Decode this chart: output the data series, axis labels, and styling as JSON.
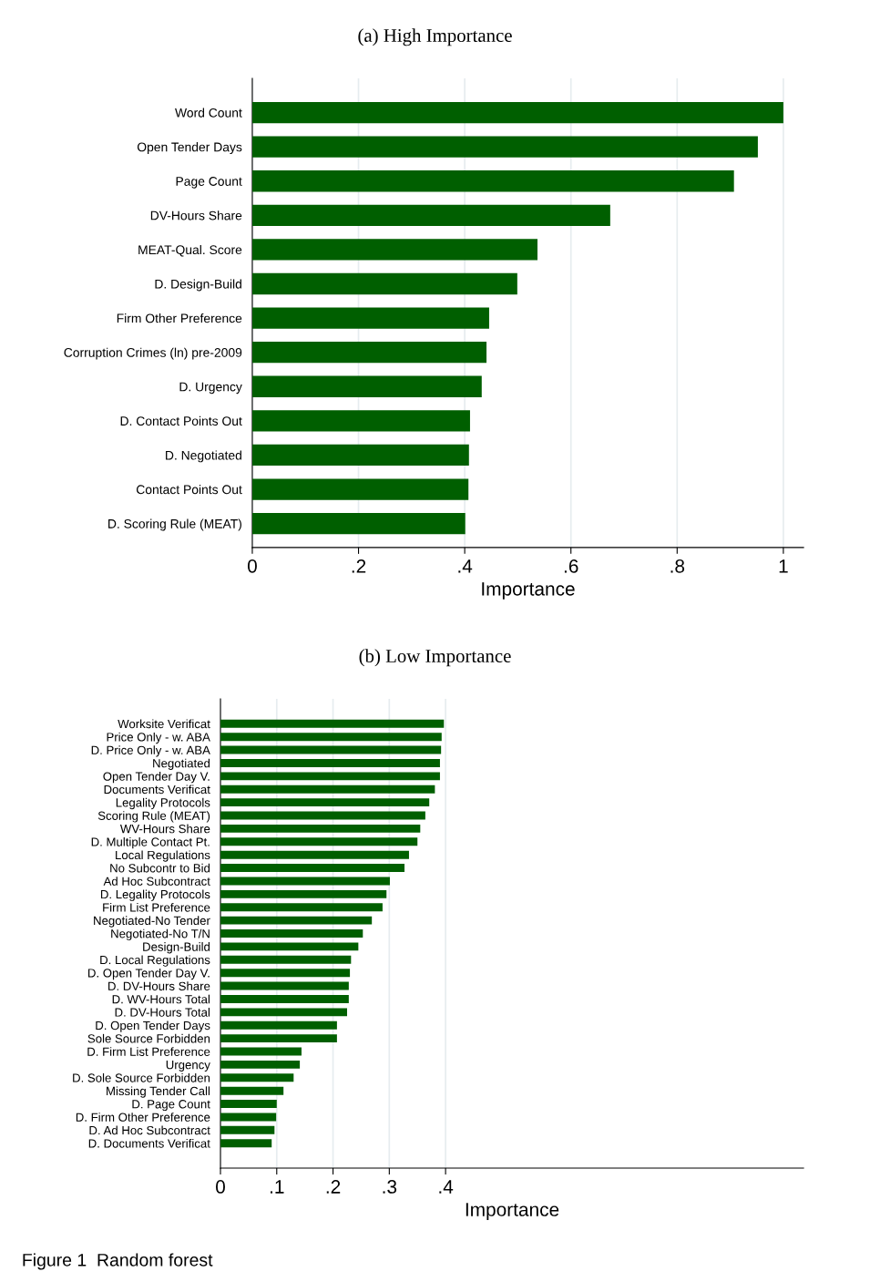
{
  "chart_data": [
    {
      "type": "bar",
      "orientation": "horizontal",
      "title": "(a) High Importance",
      "xlabel": "Importance",
      "categories": [
        "Word Count",
        "Open Tender Days",
        "Page Count",
        "DV-Hours Share",
        "MEAT-Qual. Score",
        "D. Design-Build",
        "Firm Other Preference",
        "Corruption Crimes (ln) pre-2009",
        "D. Urgency",
        "D. Contact Points Out",
        "D. Negotiated",
        "Contact Points Out",
        "D. Scoring Rule (MEAT)"
      ],
      "values": [
        1.0,
        0.952,
        0.907,
        0.674,
        0.537,
        0.499,
        0.446,
        0.441,
        0.432,
        0.41,
        0.408,
        0.407,
        0.401
      ],
      "color": "#005f00",
      "xlim": [
        0,
        1.038
      ],
      "xticks": [
        0,
        {
          "value": 0.2,
          "label": ".2"
        },
        {
          "value": 0.4,
          "label": ".4"
        },
        {
          "value": 0.6,
          "label": ".6"
        },
        {
          "value": 0.8,
          "label": ".8"
        },
        1
      ],
      "grid": "x"
    },
    {
      "type": "bar",
      "orientation": "horizontal",
      "title": "(b) Low Importance",
      "xlabel": "Importance",
      "categories": [
        "Worksite Verificat",
        "Price Only - w. ABA",
        "D. Price Only - w. ABA",
        "Negotiated",
        "Open Tender Day V.",
        "Documents Verificat",
        "Legality Protocols",
        "Scoring Rule (MEAT)",
        "WV-Hours Share",
        "D. Multiple Contact Pt.",
        "Local Regulations",
        "No Subcontr to Bid",
        "Ad Hoc Subcontract",
        "D. Legality Protocols",
        "Firm List Preference",
        "Negotiated-No Tender",
        "Negotiated-No T/N",
        "Design-Build",
        "D. Local Regulations",
        "D. Open Tender Day V.",
        "D. DV-Hours Share",
        "D. WV-Hours Total",
        "D. DV-Hours Total",
        "D. Open Tender Days",
        "Sole Source Forbidden",
        "D. Firm List Preference",
        "Urgency",
        "D. Sole Source Forbidden",
        "Missing Tender Call",
        "D. Page Count",
        "D. Firm Other Preference",
        "D. Ad Hoc Subcontract",
        "D. Documents Verificat"
      ],
      "values": [
        0.397,
        0.393,
        0.392,
        0.39,
        0.39,
        0.381,
        0.371,
        0.364,
        0.355,
        0.35,
        0.335,
        0.327,
        0.301,
        0.295,
        0.288,
        0.269,
        0.253,
        0.245,
        0.232,
        0.23,
        0.228,
        0.228,
        0.225,
        0.207,
        0.207,
        0.144,
        0.141,
        0.13,
        0.112,
        0.1,
        0.099,
        0.096,
        0.091
      ],
      "color": "#005f00",
      "xlim": [
        0,
        1.036
      ],
      "xticks": [
        0,
        {
          "value": 0.1,
          "label": ".1"
        },
        {
          "value": 0.2,
          "label": ".2"
        },
        {
          "value": 0.3,
          "label": ".3"
        },
        {
          "value": 0.4,
          "label": ".4"
        }
      ],
      "grid": "x",
      "annotations": [
        "Figure 1  Random forest"
      ]
    }
  ]
}
